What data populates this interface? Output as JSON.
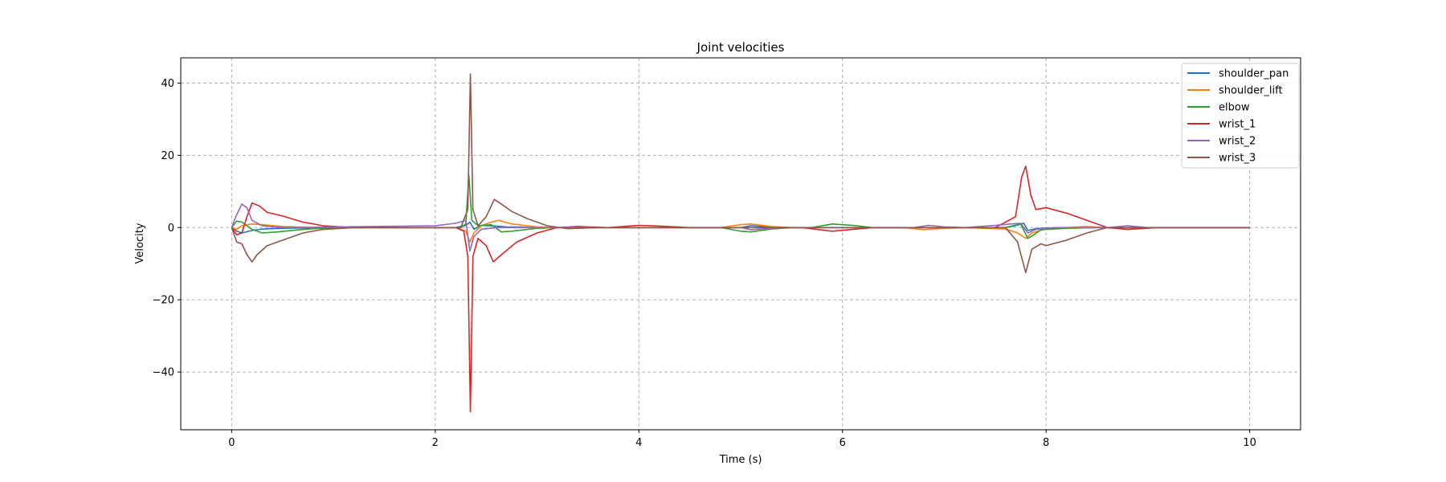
{
  "chart_data": {
    "type": "line",
    "title": "Joint velocities",
    "xlabel": "Time (s)",
    "ylabel": "Velocity",
    "xlim": [
      -0.5,
      10.5
    ],
    "ylim": [
      -56,
      47
    ],
    "xticks": [
      0,
      2,
      4,
      6,
      8,
      10
    ],
    "yticks": [
      -40,
      -20,
      0,
      20,
      40
    ],
    "ytick_labels": [
      "−40",
      "−20",
      "0",
      "20",
      "40"
    ],
    "grid": true,
    "legend_position": "top-right",
    "series": [
      {
        "name": "shoulder_pan",
        "color": "#1f77b4",
        "points": [
          [
            0,
            0
          ],
          [
            0.05,
            -1
          ],
          [
            0.1,
            -1.5
          ],
          [
            0.2,
            -0.8
          ],
          [
            0.3,
            -0.4
          ],
          [
            0.5,
            -0.2
          ],
          [
            1,
            0
          ],
          [
            2.2,
            0
          ],
          [
            2.3,
            0.6
          ],
          [
            2.34,
            1.5
          ],
          [
            2.38,
            -0.5
          ],
          [
            2.45,
            0.6
          ],
          [
            2.55,
            0.5
          ],
          [
            2.7,
            0.2
          ],
          [
            3,
            0
          ],
          [
            5,
            0
          ],
          [
            5.1,
            0.5
          ],
          [
            5.3,
            0.2
          ],
          [
            5.5,
            0
          ],
          [
            7.6,
            0
          ],
          [
            7.7,
            0.5
          ],
          [
            7.78,
            1.2
          ],
          [
            7.82,
            -0.8
          ],
          [
            7.9,
            -0.3
          ],
          [
            8.1,
            0
          ],
          [
            10,
            0
          ]
        ]
      },
      {
        "name": "shoulder_lift",
        "color": "#ff7f0e",
        "points": [
          [
            0,
            0
          ],
          [
            0.05,
            -0.5
          ],
          [
            0.1,
            0.5
          ],
          [
            0.2,
            1
          ],
          [
            0.3,
            0.8
          ],
          [
            0.5,
            0.3
          ],
          [
            0.8,
            0
          ],
          [
            2.2,
            0
          ],
          [
            2.3,
            -1
          ],
          [
            2.34,
            -4
          ],
          [
            2.38,
            -1.5
          ],
          [
            2.45,
            0.5
          ],
          [
            2.55,
            1.5
          ],
          [
            2.62,
            2
          ],
          [
            2.75,
            1
          ],
          [
            3,
            0.2
          ],
          [
            3.2,
            0
          ],
          [
            4.8,
            0
          ],
          [
            5,
            0.8
          ],
          [
            5.1,
            1
          ],
          [
            5.3,
            0.3
          ],
          [
            5.5,
            0
          ],
          [
            6.6,
            0
          ],
          [
            6.8,
            -0.6
          ],
          [
            7,
            -0.2
          ],
          [
            7.2,
            0
          ],
          [
            7.6,
            -0.4
          ],
          [
            7.72,
            -1.5
          ],
          [
            7.8,
            -3
          ],
          [
            7.86,
            -1.5
          ],
          [
            8,
            -0.3
          ],
          [
            8.4,
            0.3
          ],
          [
            8.6,
            0
          ],
          [
            10,
            0
          ]
        ]
      },
      {
        "name": "elbow",
        "color": "#2ca02c",
        "points": [
          [
            0,
            0
          ],
          [
            0.05,
            1.8
          ],
          [
            0.1,
            1.5
          ],
          [
            0.2,
            -0.5
          ],
          [
            0.3,
            -1.5
          ],
          [
            0.45,
            -1.2
          ],
          [
            0.7,
            -0.5
          ],
          [
            1,
            0
          ],
          [
            2.25,
            0
          ],
          [
            2.3,
            1
          ],
          [
            2.33,
            14.5
          ],
          [
            2.36,
            2
          ],
          [
            2.42,
            0.5
          ],
          [
            2.55,
            0.8
          ],
          [
            2.65,
            -1.2
          ],
          [
            2.75,
            -1
          ],
          [
            3,
            -0.2
          ],
          [
            3.2,
            0
          ],
          [
            4.8,
            0
          ],
          [
            5,
            -1
          ],
          [
            5.1,
            -1.2
          ],
          [
            5.3,
            -0.4
          ],
          [
            5.5,
            0
          ],
          [
            5.7,
            0
          ],
          [
            5.9,
            1
          ],
          [
            6.1,
            0.6
          ],
          [
            6.3,
            0
          ],
          [
            7.6,
            0
          ],
          [
            7.75,
            1
          ],
          [
            7.82,
            -3
          ],
          [
            7.88,
            -2
          ],
          [
            7.95,
            -0.6
          ],
          [
            8.2,
            -0.2
          ],
          [
            8.5,
            0
          ],
          [
            10,
            0
          ]
        ]
      },
      {
        "name": "wrist_1",
        "color": "#d62728",
        "points": [
          [
            0,
            0
          ],
          [
            0.05,
            -2
          ],
          [
            0.1,
            -1.5
          ],
          [
            0.15,
            3
          ],
          [
            0.2,
            6.8
          ],
          [
            0.27,
            6
          ],
          [
            0.35,
            4.2
          ],
          [
            0.5,
            3.2
          ],
          [
            0.7,
            1.5
          ],
          [
            0.9,
            0.5
          ],
          [
            1.2,
            0
          ],
          [
            2.2,
            0
          ],
          [
            2.28,
            -1
          ],
          [
            2.32,
            -8
          ],
          [
            2.345,
            -51
          ],
          [
            2.37,
            -8
          ],
          [
            2.42,
            -3
          ],
          [
            2.5,
            -5
          ],
          [
            2.57,
            -9.5
          ],
          [
            2.65,
            -7.5
          ],
          [
            2.8,
            -4
          ],
          [
            3,
            -1.5
          ],
          [
            3.2,
            0
          ],
          [
            3.4,
            0.3
          ],
          [
            3.7,
            0
          ],
          [
            4,
            0.6
          ],
          [
            4.2,
            0.4
          ],
          [
            4.5,
            0
          ],
          [
            5.6,
            0
          ],
          [
            5.9,
            -1
          ],
          [
            6.1,
            -0.5
          ],
          [
            6.3,
            0
          ],
          [
            7.5,
            0
          ],
          [
            7.7,
            3
          ],
          [
            7.76,
            14
          ],
          [
            7.8,
            17
          ],
          [
            7.85,
            9
          ],
          [
            7.9,
            5
          ],
          [
            8,
            5.5
          ],
          [
            8.2,
            4
          ],
          [
            8.4,
            2
          ],
          [
            8.6,
            0
          ],
          [
            8.8,
            -0.5
          ],
          [
            9.1,
            0
          ],
          [
            10,
            0
          ]
        ]
      },
      {
        "name": "wrist_2",
        "color": "#9467bd",
        "points": [
          [
            0,
            0
          ],
          [
            0.04,
            3
          ],
          [
            0.1,
            6.5
          ],
          [
            0.15,
            5.5
          ],
          [
            0.2,
            2
          ],
          [
            0.3,
            0.5
          ],
          [
            0.5,
            0
          ],
          [
            2,
            0.5
          ],
          [
            2.2,
            1.2
          ],
          [
            2.3,
            2
          ],
          [
            2.34,
            -6.5
          ],
          [
            2.38,
            -2.5
          ],
          [
            2.45,
            -0.5
          ],
          [
            2.6,
            0
          ],
          [
            5,
            0
          ],
          [
            5.1,
            -0.6
          ],
          [
            5.3,
            -0.2
          ],
          [
            5.5,
            0
          ],
          [
            6.7,
            0
          ],
          [
            6.85,
            0.6
          ],
          [
            7,
            0.2
          ],
          [
            7.2,
            0
          ],
          [
            7.5,
            0.6
          ],
          [
            7.65,
            1
          ],
          [
            7.75,
            1.2
          ],
          [
            7.82,
            -1.5
          ],
          [
            7.9,
            -0.5
          ],
          [
            8.1,
            0
          ],
          [
            8.6,
            0
          ],
          [
            8.8,
            0.5
          ],
          [
            9,
            0
          ],
          [
            10,
            0
          ]
        ]
      },
      {
        "name": "wrist_3",
        "color": "#8c564b",
        "points": [
          [
            0,
            0
          ],
          [
            0.05,
            -4
          ],
          [
            0.1,
            -4.5
          ],
          [
            0.15,
            -7.5
          ],
          [
            0.2,
            -9.5
          ],
          [
            0.25,
            -7.5
          ],
          [
            0.35,
            -5
          ],
          [
            0.5,
            -3.5
          ],
          [
            0.7,
            -1.5
          ],
          [
            0.9,
            -0.5
          ],
          [
            1.2,
            0
          ],
          [
            2.25,
            0
          ],
          [
            2.32,
            5
          ],
          [
            2.345,
            42.5
          ],
          [
            2.37,
            5
          ],
          [
            2.42,
            0.5
          ],
          [
            2.5,
            3
          ],
          [
            2.58,
            7.8
          ],
          [
            2.65,
            6.5
          ],
          [
            2.75,
            4.5
          ],
          [
            2.9,
            2.5
          ],
          [
            3.1,
            0.5
          ],
          [
            3.3,
            -0.3
          ],
          [
            3.6,
            0
          ],
          [
            7.6,
            0
          ],
          [
            7.72,
            -4
          ],
          [
            7.8,
            -12.5
          ],
          [
            7.86,
            -6
          ],
          [
            7.95,
            -4.5
          ],
          [
            8,
            -5
          ],
          [
            8.2,
            -3.5
          ],
          [
            8.4,
            -1.5
          ],
          [
            8.6,
            0
          ],
          [
            10,
            0
          ]
        ]
      }
    ]
  }
}
